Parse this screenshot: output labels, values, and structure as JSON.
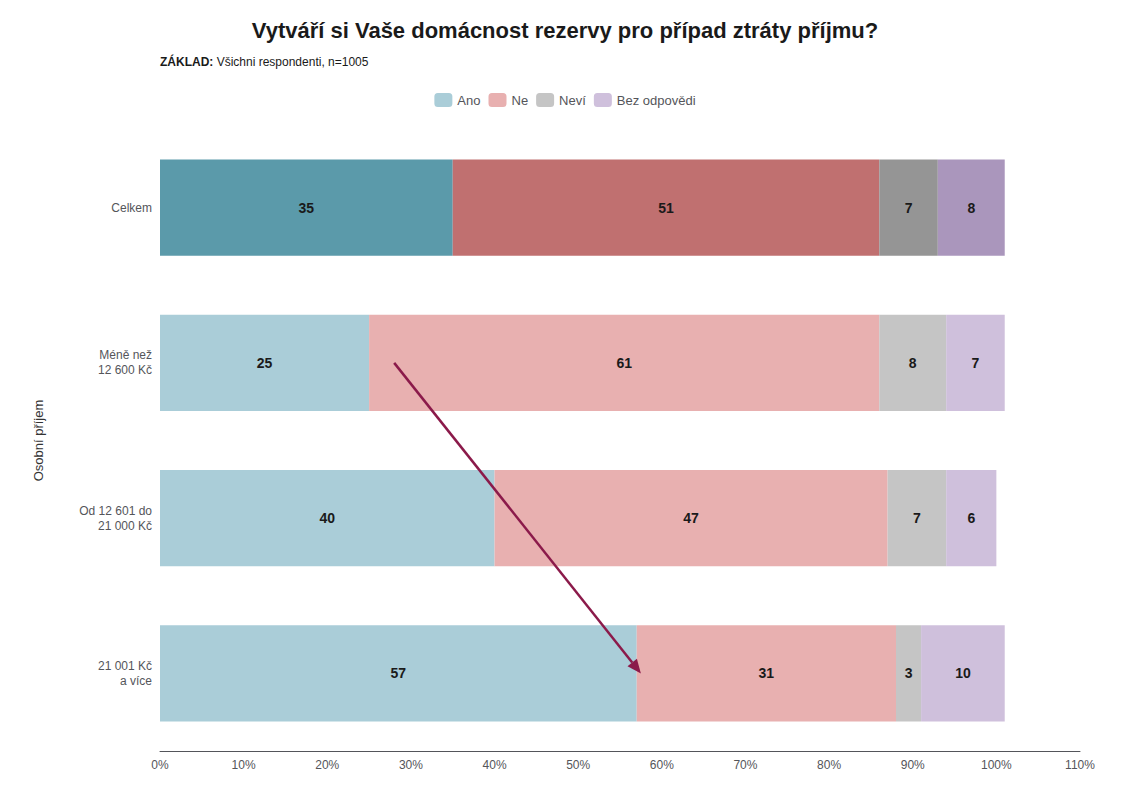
{
  "chart_data": {
    "type": "bar",
    "orientation": "horizontal",
    "stacked": true,
    "data_labels": true,
    "grid": false,
    "legend": "top",
    "title": "Vytváří si Vaše domácnost rezervy pro případ ztráty příjmu?",
    "subtitle": "ZÁKLAD: Všichni respondenti, n=1005",
    "ylabel": "Osobní příjem",
    "categories": [
      "Celkem",
      "Méně než\n12 600 Kč",
      "Od 12 601 do\n21 000 Kč",
      "21 001 Kč\na více"
    ],
    "series": [
      {
        "name": "Ano",
        "color": "#aacdd8",
        "colors": [
          "#5b9aaa",
          "#aacdd8",
          "#aacdd8",
          "#aacdd8"
        ],
        "values": [
          35,
          25,
          40,
          57
        ]
      },
      {
        "name": "Ne",
        "color": "#e8b0b0",
        "colors": [
          "#c07070",
          "#e8b0b0",
          "#e8b0b0",
          "#e8b0b0"
        ],
        "values": [
          51,
          61,
          47,
          31
        ]
      },
      {
        "name": "Neví",
        "color": "#c5c5c5",
        "colors": [
          "#959595",
          "#c5c5c5",
          "#c5c5c5",
          "#c5c5c5"
        ],
        "values": [
          7,
          8,
          7,
          3
        ]
      },
      {
        "name": "Bez odpovědi",
        "color": "#cfc0dc",
        "colors": [
          "#aa96bc",
          "#cfc0dc",
          "#cfc0dc",
          "#cfc0dc"
        ],
        "values": [
          8,
          7,
          6,
          10
        ]
      }
    ],
    "xlim": [
      0,
      110
    ],
    "xticks": [
      {
        "value": 0,
        "label": "0%"
      },
      {
        "value": 10,
        "label": "10%"
      },
      {
        "value": 20,
        "label": "20%"
      },
      {
        "value": 30,
        "label": "30%"
      },
      {
        "value": 40,
        "label": "40%"
      },
      {
        "value": 50,
        "label": "50%"
      },
      {
        "value": 60,
        "label": "60%"
      },
      {
        "value": 70,
        "label": "70%"
      },
      {
        "value": 80,
        "label": "80%"
      },
      {
        "value": 90,
        "label": "90%"
      },
      {
        "value": 100,
        "label": "100%"
      },
      {
        "value": 110,
        "label": "110%"
      }
    ],
    "annotations": [
      {
        "type": "arrow",
        "from": [
          28.0,
          "Méně než\n12 600 Kč"
        ],
        "to": [
          57.5,
          "21 001 Kč\na více"
        ],
        "color": "#8b1a4a"
      }
    ]
  }
}
